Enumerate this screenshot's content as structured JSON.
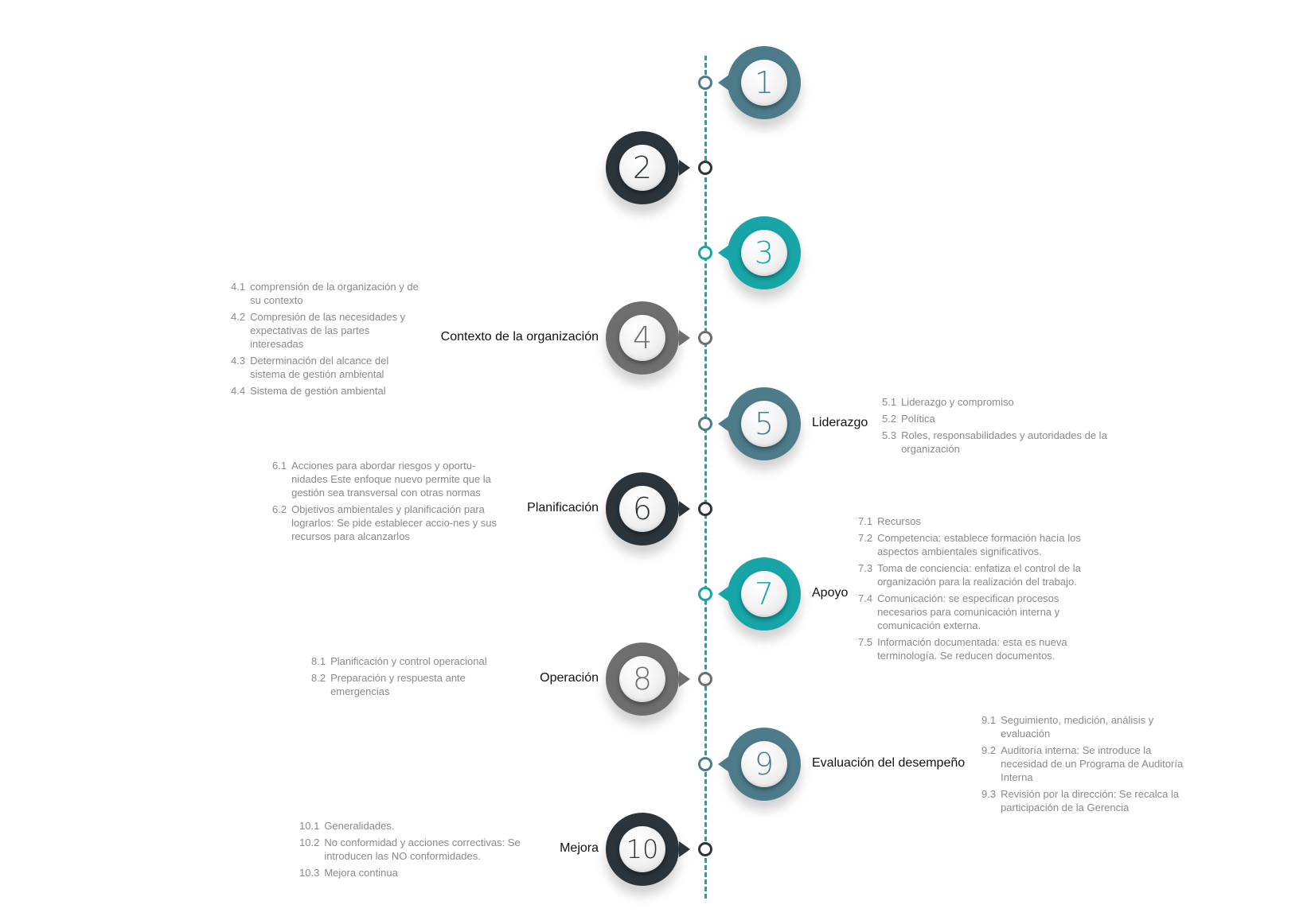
{
  "colors": {
    "slate": "#4d7b8a",
    "charcoal": "#2b333b",
    "teal": "#17a5a8",
    "gray": "#6e6e6e",
    "axis": "#17a5a8"
  },
  "steps": [
    {
      "number": "1",
      "title": "",
      "items": []
    },
    {
      "number": "2",
      "title": "",
      "items": []
    },
    {
      "number": "3",
      "title": "",
      "items": []
    },
    {
      "number": "4",
      "title": "Contexto de la organización",
      "items": [
        {
          "num": "4.1",
          "text": "comprensión de la organización y de su contexto"
        },
        {
          "num": "4.2",
          "text": "Compresión de las necesidades y expectativas de las partes interesadas"
        },
        {
          "num": "4.3",
          "text": "Determinación del alcance del sistema de gestión ambiental"
        },
        {
          "num": "4.4",
          "text": "Sistema de gestión ambiental"
        }
      ]
    },
    {
      "number": "5",
      "title": "Liderazgo",
      "items": [
        {
          "num": "5.1",
          "text": "Liderazgo y compromiso"
        },
        {
          "num": "5.2",
          "text": "Política"
        },
        {
          "num": "5.3",
          "text": "Roles, responsabilidades y autoridades de la organización"
        }
      ]
    },
    {
      "number": "6",
      "title": "Planificación",
      "items": [
        {
          "num": "6.1",
          "text": "Acciones para abordar riesgos y oportu-nidades Este enfoque nuevo permite que la gestión sea transversal con otras normas"
        },
        {
          "num": "6.2",
          "text": "Objetivos ambientales y planificación para lograrlos: Se pide establecer accio-nes y sus recursos para alcanzarlos"
        }
      ]
    },
    {
      "number": "7",
      "title": "Apoyo",
      "items": [
        {
          "num": "7.1",
          "text": "Recursos"
        },
        {
          "num": "7.2",
          "text": "Competencia: establece formación hacía los aspectos ambientales significativos."
        },
        {
          "num": "7.3",
          "text": "Toma de conciencia: enfatiza el control de la organización para la realización del trabajo."
        },
        {
          "num": "7.4",
          "text": "Comunicación: se especifican procesos necesarios para comunicación interna y comunicación externa."
        },
        {
          "num": "7.5",
          "text": "Información documentada: esta es nueva terminología. Se reducen documentos."
        }
      ]
    },
    {
      "number": "8",
      "title": "Operación",
      "items": [
        {
          "num": "8.1",
          "text": "Planificación y control operacional"
        },
        {
          "num": "8.2",
          "text": "Preparación y respuesta ante emergencias"
        }
      ]
    },
    {
      "number": "9",
      "title": "Evaluación del desempeño",
      "items": [
        {
          "num": "9.1",
          "text": "Seguimiento, medición, análisis y evaluación"
        },
        {
          "num": "9.2",
          "text": "Auditoría interna: Se introduce la necesidad de un Programa de Auditoría Interna"
        },
        {
          "num": "9.3",
          "text": "Revisión por la dirección: Se recalca la participación de la Gerencia"
        }
      ]
    },
    {
      "number": "10",
      "title": "Mejora",
      "items": [
        {
          "num": "10.1",
          "text": "Generalidades."
        },
        {
          "num": "10.2",
          "text": "No conformidad y acciones correctivas: Se introducen las NO conformidades."
        },
        {
          "num": "10.3",
          "text": "Mejora continua"
        }
      ]
    }
  ]
}
